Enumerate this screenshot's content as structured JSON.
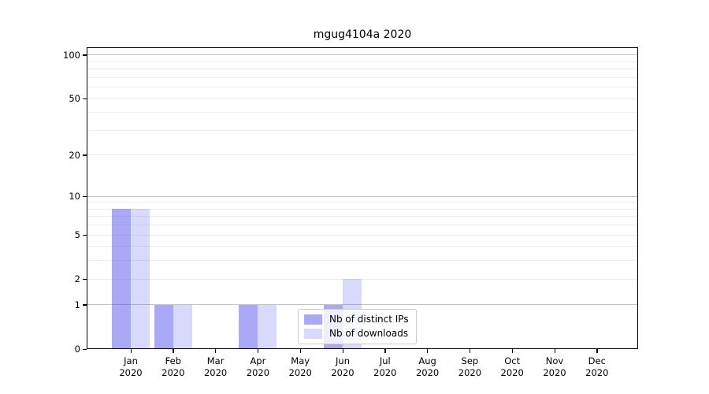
{
  "figure": {
    "title": "mgug4104a 2020"
  },
  "chart_data": {
    "type": "bar",
    "title": "mgug4104a 2020",
    "categories": [
      "Jan",
      "Feb",
      "Mar",
      "Apr",
      "May",
      "Jun",
      "Jul",
      "Aug",
      "Sep",
      "Oct",
      "Nov",
      "Dec"
    ],
    "year": "2020",
    "series": [
      {
        "name": "Nb of distinct IPs",
        "color": "#a9a9f5",
        "rgba": "rgba(64,64,240,0.45)",
        "values": [
          8,
          1,
          0,
          1,
          0,
          1,
          0,
          0,
          0,
          0,
          0,
          0
        ]
      },
      {
        "name": "Nb of downloads",
        "color": "#d9d9fa",
        "rgba": "rgba(64,64,240,0.20)",
        "values": [
          8,
          1,
          0,
          1,
          0,
          2,
          0,
          0,
          0,
          0,
          0,
          0
        ]
      }
    ],
    "xlabel": "",
    "ylabel": "",
    "yscale": "log1p",
    "ylim": [
      0,
      113
    ],
    "yticks": [
      100,
      50,
      20,
      10,
      5,
      2,
      1,
      0
    ],
    "grid": {
      "major_lines": [
        1,
        10,
        100
      ],
      "minor_lines": [
        2,
        3,
        4,
        5,
        6,
        7,
        8,
        9,
        20,
        30,
        40,
        50,
        60,
        70,
        80,
        90
      ],
      "major_color": "#c3c3c3",
      "minor_color": "#ededed"
    },
    "legend": {
      "position": "lower-center-inside",
      "entries": [
        "Nb of distinct IPs",
        "Nb of downloads"
      ]
    }
  }
}
